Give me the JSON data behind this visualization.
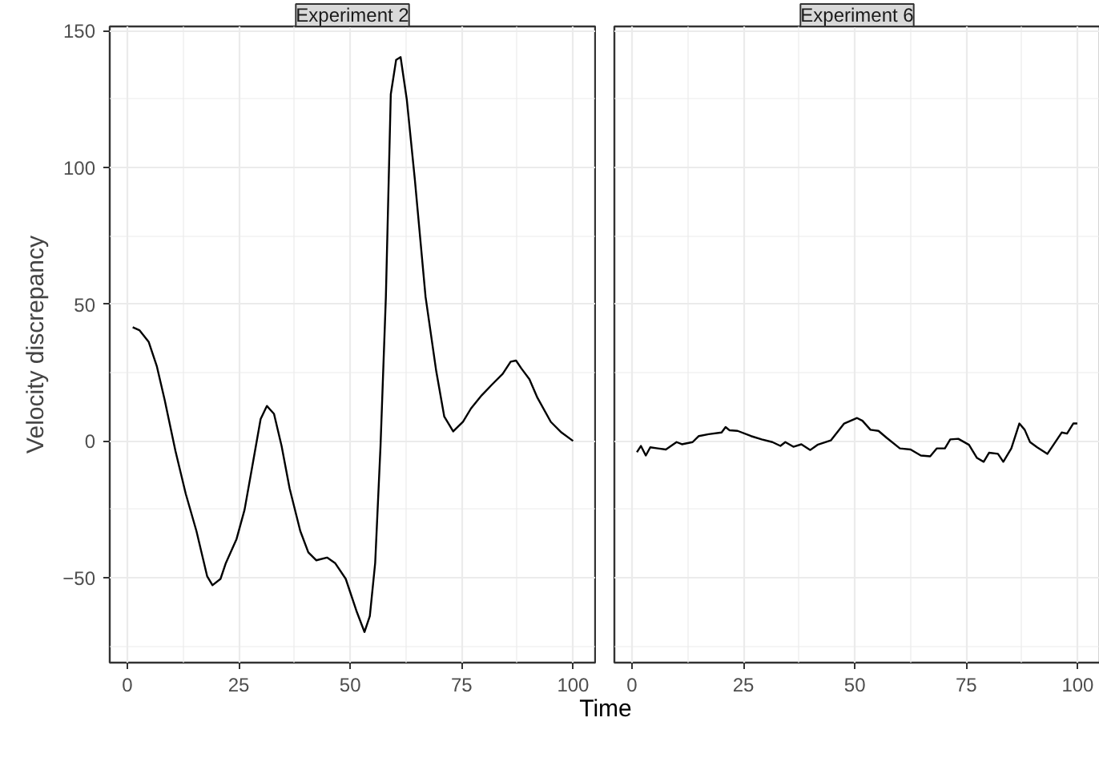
{
  "chart_data": [
    {
      "type": "line",
      "title": "Experiment 2",
      "ylabel": "Velocity discrepancy",
      "xlabel": "Time",
      "grid": true,
      "line_style": "solid",
      "color": "#000000",
      "xlim": [
        -3.95,
        104.95
      ],
      "ylim": [
        -81,
        151.5
      ],
      "xticks": [
        0,
        25,
        50,
        75,
        100
      ],
      "yticks": [
        -50,
        0,
        50,
        100,
        150
      ],
      "x": [
        1.2,
        2.7,
        4.8,
        6.6,
        8.4,
        10.8,
        13.1,
        15.5,
        17.9,
        19.1,
        20.9,
        22.1,
        24.5,
        26.3,
        28.1,
        29.9,
        31.3,
        32.9,
        34.6,
        36.4,
        38.8,
        40.6,
        42.4,
        44.8,
        46.6,
        49,
        51.4,
        53.2,
        54.4,
        55.6,
        56.8,
        58,
        59.1,
        60.3,
        61.3,
        62.7,
        64.5,
        66.9,
        69.3,
        71.1,
        73.1,
        75.3,
        77.1,
        79.5,
        81.8,
        84.2,
        86,
        87.2,
        88.4,
        90.2,
        92,
        95,
        97.4,
        100
      ],
      "values": [
        41.6,
        40.5,
        36.2,
        27.4,
        14.8,
        -3.7,
        -19.3,
        -32.9,
        -49.4,
        -52.7,
        -50.4,
        -44.6,
        -35.8,
        -25.1,
        -8.6,
        8,
        12.8,
        9.9,
        -1.8,
        -17.3,
        -32.9,
        -40.7,
        -43.6,
        -42.6,
        -44.6,
        -50.4,
        -62.1,
        -69.8,
        -64,
        -44.6,
        -1.8,
        52.7,
        126.7,
        139.3,
        140.3,
        124.7,
        95.5,
        52.7,
        25.5,
        8.9,
        3.5,
        7,
        11.9,
        16.7,
        20.6,
        24.5,
        29,
        29.4,
        26.5,
        22.6,
        15.8,
        7,
        3.1,
        0
      ]
    },
    {
      "type": "line",
      "title": "Experiment 6",
      "grid": true,
      "line_style": "solid",
      "color": "#000000",
      "tick_labels": "x",
      "xlim": [
        -3.95,
        104.95
      ],
      "ylim": [
        -81,
        151.5
      ],
      "xticks": [
        0,
        25,
        50,
        75,
        100
      ],
      "yticks": [
        -50,
        0,
        50,
        100,
        150
      ],
      "x": [
        1.1,
        2,
        3.1,
        4.1,
        5.8,
        7.6,
        10,
        11.2,
        13.6,
        15,
        17.2,
        20.1,
        21,
        21.9,
        23.7,
        26.7,
        29.1,
        31.5,
        33.3,
        34.4,
        36.2,
        38,
        40,
        41.6,
        44.6,
        47.6,
        50.5,
        51.7,
        53.5,
        55.3,
        57.1,
        60.1,
        62.5,
        64.8,
        66.9,
        68.4,
        70.2,
        71.4,
        73.2,
        75.6,
        77.4,
        78.9,
        80.1,
        82.1,
        83.3,
        85.1,
        86.9,
        88.1,
        89.3,
        90.9,
        93.2,
        96.4,
        97.6,
        99,
        99.9
      ],
      "values": [
        -4.1,
        -1.8,
        -5.3,
        -2.3,
        -2.7,
        -3.1,
        -0.4,
        -1.2,
        -0.4,
        1.8,
        2.5,
        3.1,
        5.1,
        3.9,
        3.7,
        1.8,
        0.6,
        -0.4,
        -1.8,
        -0.4,
        -2.1,
        -1.2,
        -3.3,
        -1.4,
        0.2,
        6.4,
        8.4,
        7.4,
        4.1,
        3.7,
        1.2,
        -2.7,
        -3.1,
        -5.3,
        -5.6,
        -2.7,
        -2.7,
        0.6,
        0.8,
        -1.4,
        -6.2,
        -7.6,
        -4.3,
        -4.7,
        -7.6,
        -2.7,
        6.4,
        4.1,
        -0.4,
        -2.3,
        -4.7,
        3.1,
        2.7,
        6.4,
        6.4
      ]
    }
  ]
}
